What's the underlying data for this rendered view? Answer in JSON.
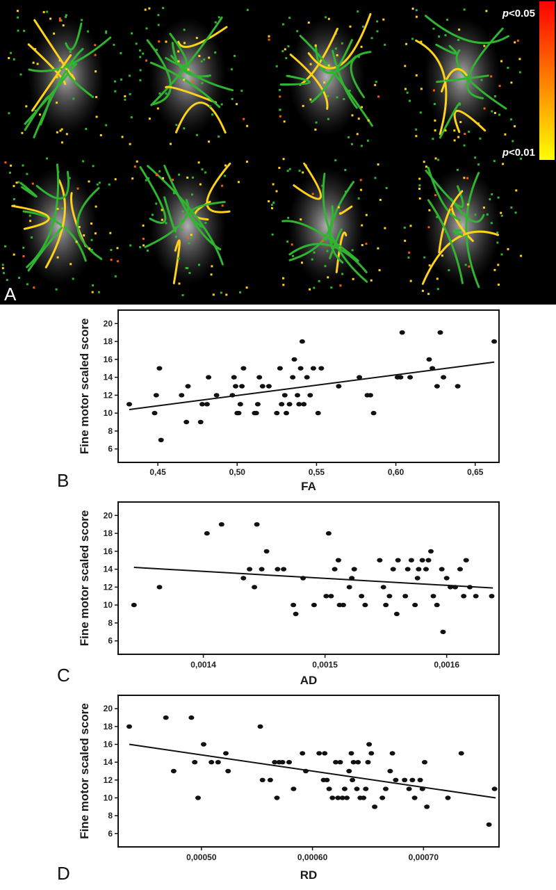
{
  "panels": {
    "A": {
      "letter": "A",
      "scale_top": "<0.05",
      "scale_bottom": "<0.01",
      "p": "p",
      "scale_colors": [
        "#ff0000",
        "#ffff00"
      ],
      "tract_colors": {
        "skeleton": "#2fb52f",
        "significant": "#ffd21a",
        "strong": "#ff5a00",
        "background": "#000000"
      }
    }
  },
  "chart_data": [
    {
      "type": "scatter",
      "panel": "B",
      "xlabel": "FA",
      "ylabel": "Fine motor scaled score",
      "xlim": [
        0.425,
        0.665
      ],
      "ylim": [
        4.5,
        21.5
      ],
      "xticks": [
        0.45,
        0.5,
        0.55,
        0.6,
        0.65
      ],
      "xtick_labels": [
        "0,45",
        "0,50",
        "0,55",
        "0,60",
        "0,65"
      ],
      "yticks": [
        6,
        8,
        10,
        12,
        14,
        16,
        18,
        20
      ],
      "fit_line": {
        "x": [
          0.432,
          0.662
        ],
        "y": [
          10.4,
          15.7
        ]
      },
      "points": [
        [
          0.432,
          11
        ],
        [
          0.448,
          10
        ],
        [
          0.449,
          12
        ],
        [
          0.451,
          15
        ],
        [
          0.452,
          7
        ],
        [
          0.465,
          12
        ],
        [
          0.468,
          9
        ],
        [
          0.469,
          13
        ],
        [
          0.477,
          9
        ],
        [
          0.478,
          11
        ],
        [
          0.481,
          11
        ],
        [
          0.482,
          14
        ],
        [
          0.487,
          12
        ],
        [
          0.497,
          12
        ],
        [
          0.498,
          14
        ],
        [
          0.499,
          13
        ],
        [
          0.5,
          10
        ],
        [
          0.501,
          10
        ],
        [
          0.502,
          11
        ],
        [
          0.503,
          13
        ],
        [
          0.504,
          15
        ],
        [
          0.511,
          10
        ],
        [
          0.512,
          10
        ],
        [
          0.513,
          11
        ],
        [
          0.514,
          14
        ],
        [
          0.516,
          13
        ],
        [
          0.52,
          13
        ],
        [
          0.525,
          10
        ],
        [
          0.527,
          15
        ],
        [
          0.528,
          11
        ],
        [
          0.53,
          12
        ],
        [
          0.531,
          10
        ],
        [
          0.533,
          11
        ],
        [
          0.535,
          14
        ],
        [
          0.536,
          16
        ],
        [
          0.538,
          12
        ],
        [
          0.539,
          11
        ],
        [
          0.54,
          15
        ],
        [
          0.541,
          18
        ],
        [
          0.542,
          11
        ],
        [
          0.544,
          14
        ],
        [
          0.546,
          12
        ],
        [
          0.548,
          15
        ],
        [
          0.551,
          10
        ],
        [
          0.553,
          15
        ],
        [
          0.564,
          13
        ],
        [
          0.577,
          14
        ],
        [
          0.582,
          12
        ],
        [
          0.584,
          12
        ],
        [
          0.586,
          10
        ],
        [
          0.601,
          14
        ],
        [
          0.603,
          14
        ],
        [
          0.604,
          19
        ],
        [
          0.609,
          14
        ],
        [
          0.621,
          16
        ],
        [
          0.623,
          15
        ],
        [
          0.626,
          13
        ],
        [
          0.628,
          19
        ],
        [
          0.63,
          14
        ],
        [
          0.639,
          13
        ],
        [
          0.662,
          18
        ]
      ]
    },
    {
      "type": "scatter",
      "panel": "C",
      "xlabel": "AD",
      "ylabel": "Fine motor scaled score",
      "xlim": [
        0.00133,
        0.001643
      ],
      "ylim": [
        4.5,
        21.5
      ],
      "xticks": [
        0.0014,
        0.0015,
        0.0016
      ],
      "xtick_labels": [
        "0,0014",
        "0,0015",
        "0,0016"
      ],
      "yticks": [
        6,
        8,
        10,
        12,
        14,
        16,
        18,
        20
      ],
      "fit_line": {
        "x": [
          0.001343,
          0.001638
        ],
        "y": [
          14.2,
          11.9
        ]
      },
      "points": [
        [
          0.001343,
          10
        ],
        [
          0.001364,
          12
        ],
        [
          0.001403,
          18
        ],
        [
          0.001415,
          19
        ],
        [
          0.001433,
          13
        ],
        [
          0.001438,
          14
        ],
        [
          0.001442,
          12
        ],
        [
          0.001444,
          19
        ],
        [
          0.001448,
          14
        ],
        [
          0.001452,
          16
        ],
        [
          0.001461,
          14
        ],
        [
          0.001466,
          14
        ],
        [
          0.001474,
          10
        ],
        [
          0.001476,
          9
        ],
        [
          0.001482,
          13
        ],
        [
          0.001491,
          10
        ],
        [
          0.001501,
          11
        ],
        [
          0.001503,
          18
        ],
        [
          0.001505,
          11
        ],
        [
          0.001508,
          14
        ],
        [
          0.001511,
          15
        ],
        [
          0.001512,
          10
        ],
        [
          0.001515,
          10
        ],
        [
          0.00152,
          12
        ],
        [
          0.001522,
          13
        ],
        [
          0.001524,
          14
        ],
        [
          0.00153,
          11
        ],
        [
          0.001533,
          10
        ],
        [
          0.001545,
          15
        ],
        [
          0.001548,
          12
        ],
        [
          0.00155,
          10
        ],
        [
          0.001553,
          11
        ],
        [
          0.001556,
          14
        ],
        [
          0.001559,
          9
        ],
        [
          0.00156,
          15
        ],
        [
          0.001566,
          11
        ],
        [
          0.001568,
          14
        ],
        [
          0.001571,
          15
        ],
        [
          0.001574,
          10
        ],
        [
          0.001576,
          13
        ],
        [
          0.001577,
          14
        ],
        [
          0.00158,
          15
        ],
        [
          0.001583,
          14
        ],
        [
          0.001585,
          15
        ],
        [
          0.001587,
          16
        ],
        [
          0.001589,
          11
        ],
        [
          0.001592,
          10
        ],
        [
          0.001596,
          14
        ],
        [
          0.001597,
          7
        ],
        [
          0.0016,
          13
        ],
        [
          0.001603,
          12
        ],
        [
          0.001607,
          12
        ],
        [
          0.001611,
          14
        ],
        [
          0.001614,
          11
        ],
        [
          0.001616,
          15
        ],
        [
          0.001619,
          12
        ],
        [
          0.001624,
          11
        ],
        [
          0.001637,
          11
        ]
      ]
    },
    {
      "type": "scatter",
      "panel": "D",
      "xlabel": "RD",
      "ylabel": "Fine motor scaled score",
      "xlim": [
        0.000425,
        0.000768
      ],
      "ylim": [
        4.5,
        21.5
      ],
      "xticks": [
        0.0005,
        0.0006,
        0.0007
      ],
      "xtick_labels": [
        "0,00050",
        "0,00060",
        "0,00070"
      ],
      "yticks": [
        6,
        8,
        10,
        12,
        14,
        16,
        18,
        20
      ],
      "fit_line": {
        "x": [
          0.000435,
          0.000765
        ],
        "y": [
          16.0,
          10.0
        ]
      },
      "points": [
        [
          0.000435,
          18
        ],
        [
          0.000468,
          19
        ],
        [
          0.000475,
          13
        ],
        [
          0.000491,
          19
        ],
        [
          0.000494,
          14
        ],
        [
          0.000497,
          10
        ],
        [
          0.000502,
          16
        ],
        [
          0.000509,
          14
        ],
        [
          0.000515,
          14
        ],
        [
          0.000522,
          15
        ],
        [
          0.000524,
          13
        ],
        [
          0.000553,
          18
        ],
        [
          0.000555,
          12
        ],
        [
          0.000562,
          12
        ],
        [
          0.000566,
          14
        ],
        [
          0.000568,
          10
        ],
        [
          0.00057,
          14
        ],
        [
          0.000573,
          14
        ],
        [
          0.000579,
          14
        ],
        [
          0.000583,
          11
        ],
        [
          0.000591,
          15
        ],
        [
          0.000594,
          13
        ],
        [
          0.000606,
          15
        ],
        [
          0.00061,
          12
        ],
        [
          0.000611,
          15
        ],
        [
          0.000613,
          12
        ],
        [
          0.000615,
          11
        ],
        [
          0.000618,
          10
        ],
        [
          0.000621,
          14
        ],
        [
          0.000623,
          10
        ],
        [
          0.000625,
          14
        ],
        [
          0.000627,
          10
        ],
        [
          0.000629,
          11
        ],
        [
          0.000631,
          10
        ],
        [
          0.000633,
          13
        ],
        [
          0.000635,
          15
        ],
        [
          0.000636,
          12
        ],
        [
          0.000637,
          14
        ],
        [
          0.00064,
          11
        ],
        [
          0.000641,
          14
        ],
        [
          0.000643,
          10
        ],
        [
          0.000646,
          10
        ],
        [
          0.000648,
          11
        ],
        [
          0.00065,
          14
        ],
        [
          0.000651,
          16
        ],
        [
          0.000653,
          15
        ],
        [
          0.000656,
          9
        ],
        [
          0.000663,
          10
        ],
        [
          0.000666,
          11
        ],
        [
          0.00067,
          13
        ],
        [
          0.000672,
          15
        ],
        [
          0.000675,
          12
        ],
        [
          0.000683,
          12
        ],
        [
          0.000687,
          11
        ],
        [
          0.00069,
          12
        ],
        [
          0.000692,
          10
        ],
        [
          0.000697,
          12
        ],
        [
          0.000699,
          11
        ],
        [
          0.000701,
          14
        ],
        [
          0.000703,
          9
        ],
        [
          0.000722,
          10
        ],
        [
          0.000734,
          15
        ],
        [
          0.000759,
          7
        ],
        [
          0.000764,
          11
        ]
      ]
    }
  ]
}
